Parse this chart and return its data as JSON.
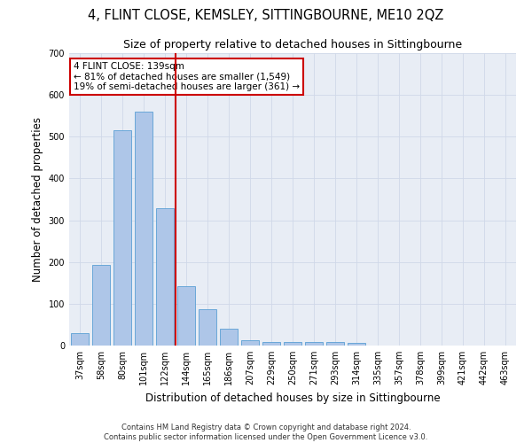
{
  "title": "4, FLINT CLOSE, KEMSLEY, SITTINGBOURNE, ME10 2QZ",
  "subtitle": "Size of property relative to detached houses in Sittingbourne",
  "xlabel": "Distribution of detached houses by size in Sittingbourne",
  "ylabel": "Number of detached properties",
  "categories": [
    "37sqm",
    "58sqm",
    "80sqm",
    "101sqm",
    "122sqm",
    "144sqm",
    "165sqm",
    "186sqm",
    "207sqm",
    "229sqm",
    "250sqm",
    "271sqm",
    "293sqm",
    "314sqm",
    "335sqm",
    "357sqm",
    "378sqm",
    "399sqm",
    "421sqm",
    "442sqm",
    "463sqm"
  ],
  "values": [
    30,
    192,
    515,
    560,
    328,
    143,
    87,
    40,
    12,
    8,
    8,
    8,
    8,
    6,
    0,
    0,
    0,
    0,
    0,
    0,
    0
  ],
  "bar_color": "#aec6e8",
  "bar_edge_color": "#5a9fd4",
  "vline_index": 5,
  "vline_color": "#cc0000",
  "annotation_text": "4 FLINT CLOSE: 139sqm\n← 81% of detached houses are smaller (1,549)\n19% of semi-detached houses are larger (361) →",
  "annotation_box_color": "#ffffff",
  "annotation_box_edge": "#cc0000",
  "ylim": [
    0,
    700
  ],
  "yticks": [
    0,
    100,
    200,
    300,
    400,
    500,
    600,
    700
  ],
  "grid_color": "#d0d8e8",
  "bg_color": "#e8edf5",
  "footnote": "Contains HM Land Registry data © Crown copyright and database right 2024.\nContains public sector information licensed under the Open Government Licence v3.0.",
  "title_fontsize": 10.5,
  "subtitle_fontsize": 9,
  "axis_label_fontsize": 8.5,
  "tick_fontsize": 7,
  "annotation_fontsize": 7.5,
  "footnote_fontsize": 6
}
